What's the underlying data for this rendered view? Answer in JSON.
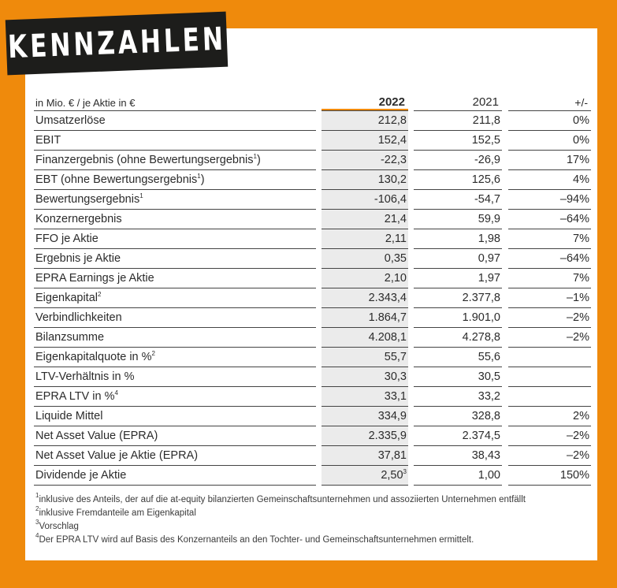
{
  "title": "KENNZAHLEN",
  "colors": {
    "accent": "#ef8a0c",
    "badge": "#1d1d1b",
    "highlight": "#ebebeb"
  },
  "header": {
    "label": "in Mio. € / je Aktie in €",
    "y2022": "2022",
    "y2021": "2021",
    "change": "+/-"
  },
  "rows": [
    {
      "label": "Umsatzerlöse",
      "sup": "",
      "v2022": "212,8",
      "v2022_sup": "",
      "v2021": "211,8",
      "change": "0%"
    },
    {
      "label": "EBIT",
      "sup": "",
      "v2022": "152,4",
      "v2022_sup": "",
      "v2021": "152,5",
      "change": "0%"
    },
    {
      "label": "Finanzergebnis (ohne Bewertungsergebnis",
      "sup": "1",
      "after": ")",
      "v2022": "-22,3",
      "v2022_sup": "",
      "v2021": "-26,9",
      "change": "17%"
    },
    {
      "label": "EBT (ohne Bewertungsergebnis",
      "sup": "1",
      "after": ")",
      "v2022": "130,2",
      "v2022_sup": "",
      "v2021": "125,6",
      "change": "4%"
    },
    {
      "label": "Bewertungsergebnis",
      "sup": "1",
      "after": "",
      "v2022": "-106,4",
      "v2022_sup": "",
      "v2021": "-54,7",
      "change": "–94%"
    },
    {
      "label": "Konzernergebnis",
      "sup": "",
      "v2022": "21,4",
      "v2022_sup": "",
      "v2021": "59,9",
      "change": "–64%"
    },
    {
      "label": "FFO je Aktie",
      "sup": "",
      "v2022": "2,11",
      "v2022_sup": "",
      "v2021": "1,98",
      "change": "7%"
    },
    {
      "label": "Ergebnis je Aktie",
      "sup": "",
      "v2022": "0,35",
      "v2022_sup": "",
      "v2021": "0,97",
      "change": "–64%"
    },
    {
      "label": "EPRA Earnings je Aktie",
      "sup": "",
      "v2022": "2,10",
      "v2022_sup": "",
      "v2021": "1,97",
      "change": "7%"
    },
    {
      "label": "Eigenkapital",
      "sup": "2",
      "after": "",
      "v2022": "2.343,4",
      "v2022_sup": "",
      "v2021": "2.377,8",
      "change": "–1%"
    },
    {
      "label": "Verbindlichkeiten",
      "sup": "",
      "v2022": "1.864,7",
      "v2022_sup": "",
      "v2021": "1.901,0",
      "change": "–2%"
    },
    {
      "label": "Bilanzsumme",
      "sup": "",
      "v2022": "4.208,1",
      "v2022_sup": "",
      "v2021": "4.278,8",
      "change": "–2%"
    },
    {
      "label": "Eigenkapitalquote in %",
      "sup": "2",
      "after": "",
      "v2022": "55,7",
      "v2022_sup": "",
      "v2021": "55,6",
      "change": ""
    },
    {
      "label": "LTV-Verhältnis in %",
      "sup": "",
      "v2022": "30,3",
      "v2022_sup": "",
      "v2021": "30,5",
      "change": ""
    },
    {
      "label": "EPRA LTV in %",
      "sup": "4",
      "after": "",
      "v2022": "33,1",
      "v2022_sup": "",
      "v2021": "33,2",
      "change": ""
    },
    {
      "label": "Liquide Mittel",
      "sup": "",
      "v2022": "334,9",
      "v2022_sup": "",
      "v2021": "328,8",
      "change": "2%"
    },
    {
      "label": "Net Asset Value (EPRA)",
      "sup": "",
      "v2022": "2.335,9",
      "v2022_sup": "",
      "v2021": "2.374,5",
      "change": "–2%"
    },
    {
      "label": "Net Asset Value je Aktie (EPRA)",
      "sup": "",
      "v2022": "37,81",
      "v2022_sup": "",
      "v2021": "38,43",
      "change": "–2%"
    },
    {
      "label": "Dividende je Aktie",
      "sup": "",
      "v2022": "2,50",
      "v2022_sup": "3",
      "v2021": "1,00",
      "change": "150%"
    }
  ],
  "footnotes": [
    {
      "mark": "1",
      "text": "inklusive des Anteils, der auf die at-equity bilanzierten Gemeinschaftsunternehmen und assoziierten Unternehmen entfällt"
    },
    {
      "mark": "2",
      "text": "inklusive Fremdanteile am Eigenkapital"
    },
    {
      "mark": "3",
      "text": "Vorschlag"
    },
    {
      "mark": "4",
      "text": "Der EPRA LTV wird auf Basis des Konzernanteils an den Tochter- und Gemeinschaftsunternehmen ermittelt."
    }
  ]
}
